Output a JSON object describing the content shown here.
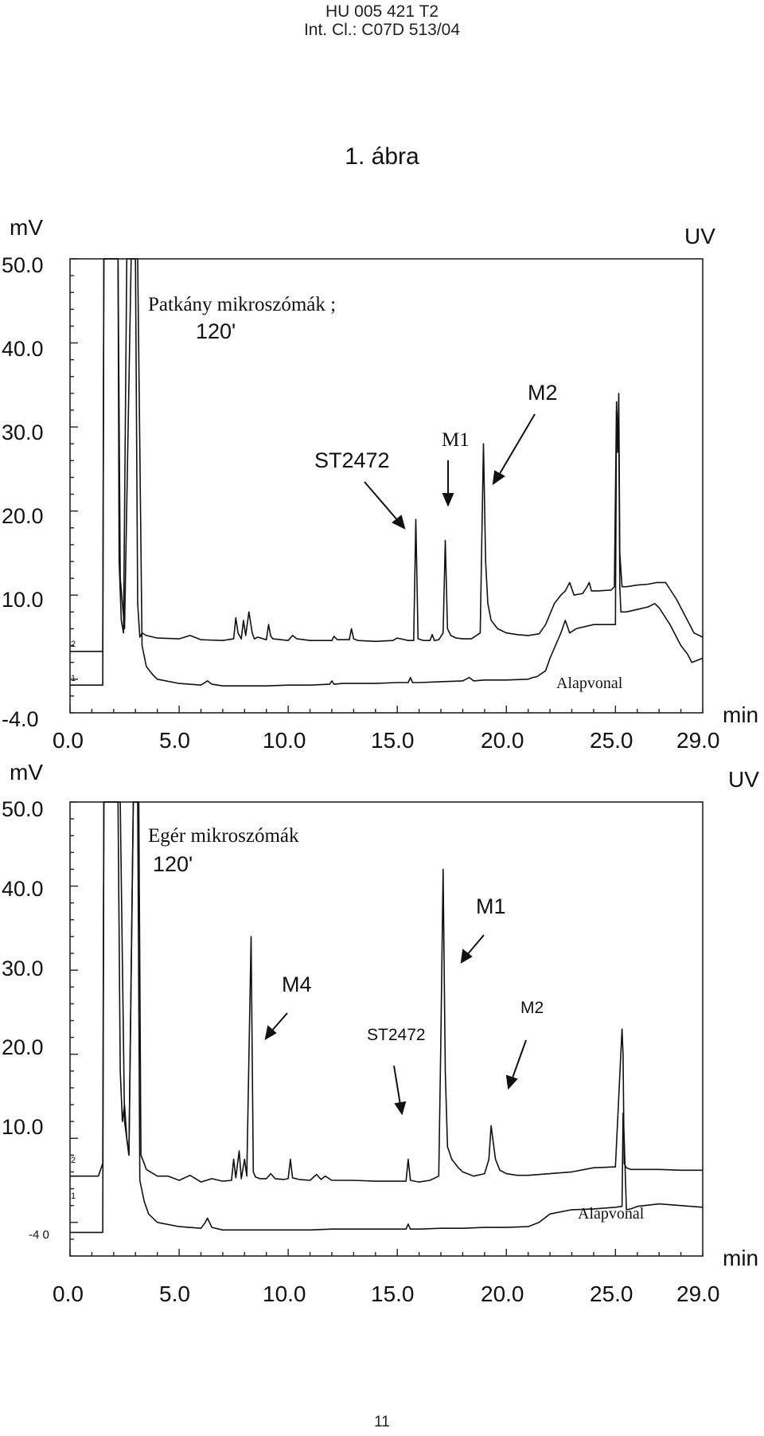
{
  "header": {
    "patent_number": "HU 005 421 T2",
    "classification": "Int. Cl.: C07D 513/04"
  },
  "figure_label": "1. ábra",
  "page_number": "11",
  "chart_data": [
    {
      "type": "line",
      "title": "Patkány mikroszómák ;",
      "subtitle": "120'",
      "ylabel": "mV",
      "xlabel": "min",
      "detector": "UV",
      "xlim": [
        0,
        29
      ],
      "ylim": [
        -4,
        50
      ],
      "y_ticks": [
        "50.0",
        "40.0",
        "30.0",
        "20.0",
        "10.0",
        "-4.0"
      ],
      "x_ticks": [
        "0.0",
        "5.0",
        "10.0",
        "15.0",
        "20.0",
        "25.0",
        "29.0"
      ],
      "baseline_label": "Alapvonal",
      "series": [
        {
          "trace_id": "2",
          "x": [
            0,
            1.4,
            1.5,
            1.55,
            1.6,
            1.65,
            1.7,
            2.1,
            2.2,
            2.25,
            2.35,
            2.45,
            2.6,
            2.8,
            2.9,
            3.0,
            3.1,
            3.2,
            3.3,
            3.5,
            4,
            5,
            5.5,
            6,
            7,
            7.5,
            7.6,
            7.7,
            7.85,
            7.95,
            8.05,
            8.2,
            8.35,
            8.45,
            8.6,
            9,
            9.1,
            9.2,
            9.3,
            10,
            10.2,
            10.4,
            11,
            12,
            12.1,
            12.25,
            12.8,
            12.9,
            13,
            13.2,
            14,
            14.8,
            15,
            15.5,
            15.75,
            15.85,
            15.95,
            16.2,
            16.5,
            16.6,
            16.7,
            16.9,
            17.1,
            17.2,
            17.3,
            17.45,
            17.7,
            18,
            18.4,
            18.8,
            18.95,
            19.05,
            19.15,
            19.3,
            19.6,
            20,
            20.5,
            21,
            21.5,
            21.8,
            22.2,
            22.5,
            22.7,
            22.9,
            23.1,
            23.5,
            23.7,
            23.8,
            23.9,
            24.2,
            24.8,
            24.95,
            25.05,
            25.1,
            25.15,
            25.2,
            25.3,
            25.5,
            26,
            26.5,
            26.9,
            27.3,
            27.8,
            28.3,
            28.6,
            29
          ],
          "y": [
            3.3,
            3.3,
            3.3,
            50,
            50,
            50,
            50,
            50,
            50,
            14,
            7,
            5.5,
            50,
            50,
            50,
            50,
            9,
            5,
            5.5,
            5.2,
            4.9,
            4.8,
            5.2,
            4.7,
            4.6,
            4.8,
            7.3,
            5.5,
            4.8,
            7,
            5.2,
            8,
            5.5,
            4.8,
            5,
            4.7,
            6.5,
            5.1,
            4.8,
            4.6,
            5.2,
            4.8,
            4.6,
            4.6,
            5.1,
            4.7,
            4.7,
            6,
            4.8,
            4.6,
            4.5,
            4.6,
            4.9,
            4.6,
            4.6,
            19,
            4.8,
            4.6,
            4.6,
            5.3,
            4.6,
            4.7,
            5.5,
            16.5,
            6,
            5.2,
            4.9,
            4.8,
            4.8,
            5.5,
            28,
            14,
            9,
            7,
            6,
            5.5,
            5.3,
            5.2,
            5.4,
            6.5,
            9,
            10,
            10.5,
            11.5,
            10,
            10.2,
            11,
            11.5,
            10.5,
            10.5,
            10.6,
            11,
            33,
            27,
            34,
            15,
            11,
            11,
            11.2,
            11.3,
            11.5,
            11.5,
            9.5,
            7,
            5.5,
            5
          ]
        },
        {
          "trace_id": "1",
          "x": [
            0,
            1.4,
            1.5,
            1.55,
            1.6,
            1.65,
            1.7,
            2.1,
            2.2,
            2.3,
            2.5,
            2.8,
            2.9,
            3.0,
            3.1,
            3.3,
            3.5,
            3.8,
            4,
            5,
            6,
            6.3,
            6.5,
            7,
            8,
            9,
            10,
            11,
            11.9,
            12,
            12.1,
            12.5,
            13,
            14,
            15,
            15.5,
            15.6,
            15.7,
            16,
            17,
            18,
            18.3,
            18.5,
            19,
            20,
            21,
            21.2,
            21.4,
            21.8,
            22,
            22.5,
            22.7,
            22.9,
            23.2,
            24,
            25,
            25.05,
            25.1,
            25.15,
            25.2,
            25.25,
            25.5,
            26,
            26.5,
            26.8,
            27,
            27.5,
            28,
            28.3,
            28.5,
            29
          ],
          "y": [
            -0.7,
            -0.7,
            -0.7,
            50,
            50,
            50,
            50,
            50,
            50,
            12,
            6,
            50,
            50,
            50,
            50,
            4,
            1.5,
            0.5,
            0,
            -0.5,
            -0.7,
            -0.2,
            -0.6,
            -0.8,
            -0.8,
            -0.8,
            -0.7,
            -0.7,
            -0.6,
            -0.2,
            -0.6,
            -0.5,
            -0.5,
            -0.5,
            -0.4,
            -0.4,
            0.2,
            -0.4,
            -0.4,
            -0.3,
            -0.2,
            0.2,
            -0.2,
            -0.1,
            -0.1,
            0,
            0.2,
            0.3,
            1,
            2.5,
            5.5,
            7,
            5.5,
            6,
            6.5,
            6.5,
            32,
            30,
            31,
            11,
            8,
            8,
            8.3,
            8.6,
            9,
            8.5,
            6.5,
            4,
            3,
            2,
            2.5
          ]
        }
      ],
      "annotations": [
        "ST2472",
        "M1",
        "M2"
      ]
    },
    {
      "type": "line",
      "title": "Egér mikroszómák",
      "subtitle": "120'",
      "ylabel": "mV",
      "xlabel": "min",
      "detector": "UV",
      "xlim": [
        0,
        29
      ],
      "ylim": [
        -4,
        50
      ],
      "y_ticks": [
        "50.0",
        "40.0",
        "30.0",
        "20.0",
        "10.0",
        "-4 0"
      ],
      "x_ticks": [
        "0.0",
        "5.0",
        "10.0",
        "15.0",
        "20.0",
        "25.0",
        "29.0"
      ],
      "baseline_label": "Alapvonal",
      "series": [
        {
          "trace_id": "2",
          "x": [
            0,
            1.3,
            1.5,
            1.55,
            1.6,
            1.65,
            1.7,
            2.2,
            2.3,
            2.4,
            2.5,
            2.6,
            2.7,
            2.9,
            3.05,
            3.15,
            3.25,
            3.4,
            3.5,
            4,
            4.5,
            5,
            5.5,
            6,
            6.5,
            7,
            7.4,
            7.5,
            7.6,
            7.75,
            7.85,
            8.0,
            8.1,
            8.3,
            8.4,
            8.5,
            8.7,
            9,
            9.2,
            9.4,
            9.8,
            10,
            10.1,
            10.2,
            10.5,
            11,
            11.3,
            11.5,
            11.7,
            12,
            13,
            14,
            15,
            15.4,
            15.5,
            15.6,
            15.8,
            16,
            16.5,
            16.9,
            17,
            17.1,
            17.2,
            17.3,
            17.5,
            17.8,
            18,
            18.5,
            19,
            19.2,
            19.3,
            19.4,
            19.5,
            19.7,
            20,
            20.5,
            21,
            22,
            23,
            24,
            25,
            25.3,
            25.35,
            25.4,
            25.5,
            25.7,
            26,
            27,
            28,
            29
          ],
          "y": [
            5.5,
            5.5,
            7,
            50,
            50,
            50,
            50,
            50,
            18,
            12,
            14,
            10,
            8,
            50,
            50,
            50,
            8,
            7,
            6.3,
            5.5,
            5.5,
            5,
            5.6,
            4.8,
            5.2,
            4.9,
            5,
            7.5,
            5.3,
            8.5,
            5.2,
            7.5,
            5.5,
            34,
            6,
            5.4,
            5.2,
            5.2,
            5.8,
            5.2,
            5.1,
            5.2,
            7.5,
            5.3,
            5.1,
            5,
            5.7,
            5.1,
            5.5,
            5,
            5,
            4.9,
            4.9,
            4.9,
            7.5,
            5,
            4.9,
            4.8,
            5,
            5.5,
            22,
            42,
            18,
            9,
            7.5,
            6.5,
            6,
            5.5,
            5.8,
            7.5,
            11.5,
            9.5,
            7.5,
            6.2,
            5.8,
            5.6,
            5.6,
            5.8,
            6,
            6.5,
            6.6,
            23,
            20,
            7,
            6.5,
            6.3,
            6.3,
            6.3,
            6.2,
            6.2
          ]
        },
        {
          "trace_id": "1",
          "x": [
            0,
            1.5,
            1.55,
            1.6,
            1.65,
            1.7,
            2.3,
            2.5,
            2.7,
            2.9,
            3.0,
            3.1,
            3.2,
            3.4,
            3.6,
            4,
            5,
            6,
            6.2,
            6.3,
            6.5,
            7,
            8,
            9,
            10,
            11,
            12,
            13,
            14,
            15,
            15.4,
            15.5,
            15.6,
            16,
            17,
            18,
            19,
            20,
            21,
            21.5,
            22,
            23,
            24,
            25,
            25.3,
            25.35,
            25.4,
            25.5,
            25.7,
            26,
            27,
            28,
            29
          ],
          "y": [
            -1.2,
            -1.2,
            50,
            50,
            50,
            50,
            50,
            12,
            8,
            50,
            50,
            50,
            5,
            2.5,
            1,
            0,
            -0.5,
            -0.7,
            0,
            0.5,
            -0.6,
            -0.9,
            -0.9,
            -0.9,
            -0.9,
            -0.9,
            -0.8,
            -0.8,
            -0.8,
            -0.8,
            -0.8,
            -0.2,
            -0.8,
            -0.8,
            -0.7,
            -0.7,
            -0.6,
            -0.6,
            -0.5,
            0,
            1,
            1.5,
            1.6,
            1.8,
            1.9,
            13,
            10,
            1.5,
            1.6,
            1.9,
            2.2,
            2,
            1.8
          ]
        }
      ],
      "annotations": [
        "M4",
        "ST2472",
        "M1",
        "M2"
      ]
    }
  ]
}
